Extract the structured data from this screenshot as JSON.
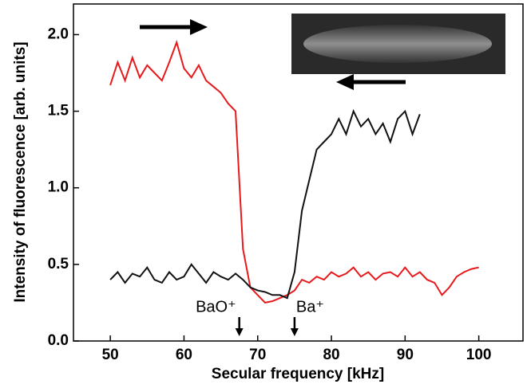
{
  "chart_data": {
    "type": "line",
    "x_label": "Secular frequency [kHz]",
    "y_label": "Intensity of fluorescence [arb. units]",
    "x": [
      50,
      51,
      52,
      53,
      54,
      55,
      56,
      57,
      58,
      59,
      60,
      61,
      62,
      63,
      64,
      65,
      66,
      67,
      68,
      69,
      70,
      71,
      72,
      73,
      74,
      75,
      76,
      77,
      78,
      79,
      80,
      81,
      82,
      83,
      84,
      85,
      86,
      87,
      88,
      89,
      90,
      91,
      92,
      93,
      94,
      95,
      96,
      97,
      98,
      99,
      100
    ],
    "series": [
      {
        "color": "#e8191c",
        "values": [
          1.67,
          1.82,
          1.7,
          1.85,
          1.72,
          1.8,
          1.75,
          1.7,
          1.82,
          1.95,
          1.78,
          1.72,
          1.8,
          1.7,
          1.66,
          1.62,
          1.55,
          1.5,
          0.6,
          0.35,
          0.3,
          0.25,
          0.26,
          0.28,
          0.3,
          0.33,
          0.4,
          0.38,
          0.42,
          0.4,
          0.45,
          0.42,
          0.44,
          0.48,
          0.42,
          0.45,
          0.4,
          0.44,
          0.45,
          0.42,
          0.48,
          0.42,
          0.45,
          0.4,
          0.38,
          0.3,
          0.35,
          0.42,
          0.45,
          0.47,
          0.48
        ]
      },
      {
        "color": "#111111",
        "values": [
          0.4,
          0.45,
          0.38,
          0.44,
          0.42,
          0.48,
          0.4,
          0.38,
          0.45,
          0.4,
          0.42,
          0.5,
          0.44,
          0.38,
          0.45,
          0.42,
          0.4,
          0.44,
          0.4,
          0.35,
          0.33,
          0.32,
          0.3,
          0.3,
          0.28,
          0.45,
          0.85,
          1.05,
          1.25,
          1.3,
          1.35,
          1.45,
          1.35,
          1.5,
          1.4,
          1.45,
          1.35,
          1.42,
          1.3,
          1.45,
          1.5,
          1.35,
          1.48,
          null,
          null,
          null,
          null,
          null,
          null,
          null,
          null
        ]
      }
    ],
    "xlim": [
      45,
      106
    ],
    "ylim": [
      0,
      2.2
    ],
    "xticks": [
      50,
      60,
      70,
      80,
      90,
      100
    ],
    "yticks": [
      {
        "value": 0,
        "label": "0.0"
      },
      {
        "value": 0.5,
        "label": "0.5"
      },
      {
        "value": 1,
        "label": "1.0"
      },
      {
        "value": 1.5,
        "label": "1.5"
      },
      {
        "value": 2,
        "label": "2.0"
      }
    ],
    "annotations": [
      {
        "text": "BaO⁺",
        "x": 67.5
      },
      {
        "text": "Ba⁺",
        "x": 75
      }
    ]
  }
}
